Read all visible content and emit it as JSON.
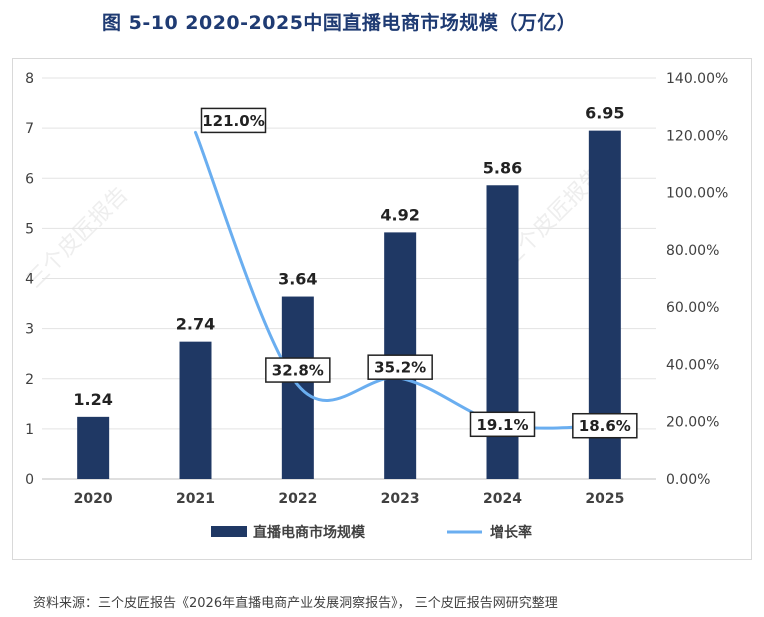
{
  "title": "图 5-10 2020-2025中国直播电商市场规模（万亿）",
  "source": "资料来源：三个皮匠报告《2026年直播电商产业发展洞察报告》， 三个皮匠报告网研究整理",
  "watermark": "三个皮匠报告",
  "chart_data": {
    "type": "bar",
    "categories": [
      "2020",
      "2021",
      "2022",
      "2023",
      "2024",
      "2025"
    ],
    "series": [
      {
        "name": "直播电商市场规模",
        "type": "bar",
        "axis": "left",
        "values": [
          1.24,
          2.74,
          3.64,
          4.92,
          5.86,
          6.95
        ],
        "labels": [
          "1.24",
          "2.74",
          "3.64",
          "4.92",
          "5.86",
          "6.95"
        ]
      },
      {
        "name": "增长率",
        "type": "line",
        "axis": "right",
        "values": [
          null,
          121.0,
          32.8,
          35.2,
          19.1,
          18.6
        ],
        "labels": [
          "",
          "121.0%",
          "32.8%",
          "35.2%",
          "19.1%",
          "18.6%"
        ]
      }
    ],
    "y_left": {
      "min": 0,
      "max": 8,
      "ticks": [
        "0",
        "1",
        "2",
        "3",
        "4",
        "5",
        "6",
        "7",
        "8"
      ]
    },
    "y_right": {
      "min": 0,
      "max": 140,
      "ticks": [
        "0.00%",
        "20.00%",
        "40.00%",
        "60.00%",
        "80.00%",
        "100.00%",
        "120.00%",
        "140.00%"
      ]
    },
    "colors": {
      "bar": "#1f3864",
      "line": "#6aaef0",
      "grid": "#e3e3e3",
      "text": "#404040"
    },
    "legend": {
      "position": "bottom"
    }
  }
}
